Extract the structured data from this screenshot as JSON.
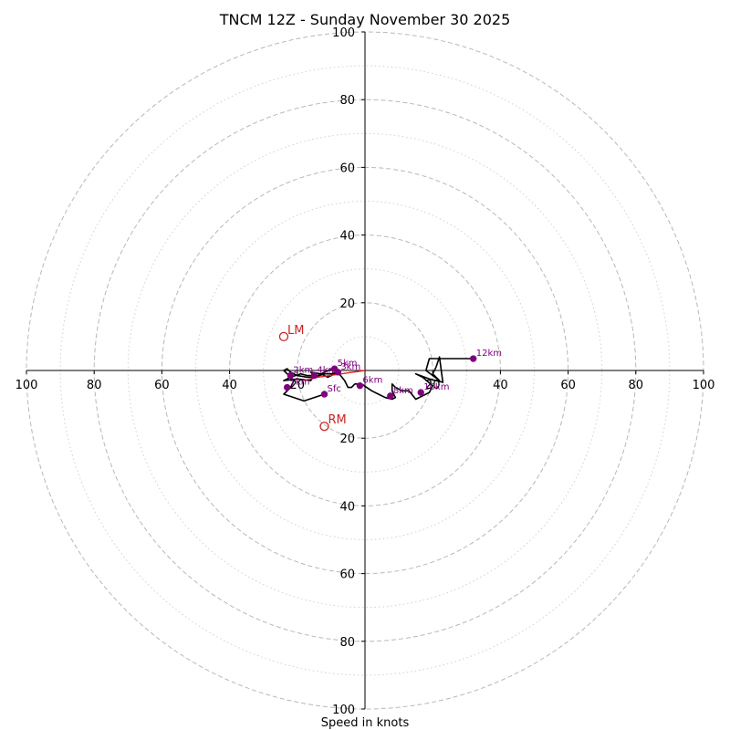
{
  "chart_data": {
    "type": "hodograph",
    "title": "TNCM 12Z - Sunday November 30 2025",
    "xlabel": "Speed in knots",
    "rmax": 100,
    "major_rings": [
      20,
      40,
      60,
      80,
      100
    ],
    "minor_rings": [
      10,
      30,
      50,
      70,
      90
    ],
    "tick_values": [
      20,
      40,
      60,
      80,
      100
    ],
    "x_tick_labels": [
      "100",
      "80",
      "60",
      "40",
      "20",
      "20",
      "40",
      "60",
      "80",
      "100"
    ],
    "x_tick_values": [
      -100,
      -80,
      -60,
      -40,
      -20,
      20,
      40,
      60,
      80,
      100
    ],
    "y_tick_labels": [
      "100",
      "80",
      "60",
      "40",
      "20",
      "20",
      "40",
      "60",
      "80",
      "100"
    ],
    "y_tick_values": [
      100,
      80,
      60,
      40,
      20,
      -20,
      -40,
      -60,
      -80,
      -100
    ],
    "trace_color": "#000000",
    "marker_color": "#800080",
    "storm_color": "#cc2222",
    "trace_uv": [
      [
        -12,
        -7
      ],
      [
        -18,
        -9
      ],
      [
        -24,
        -7
      ],
      [
        -22,
        -5
      ],
      [
        -21,
        -3
      ],
      [
        -22,
        -2
      ],
      [
        -24,
        -3
      ],
      [
        -20,
        -2.5
      ],
      [
        -16,
        -3
      ],
      [
        -15,
        -1.5
      ],
      [
        -16,
        -0.5
      ],
      [
        -13,
        -1
      ],
      [
        -11,
        -2
      ],
      [
        -8,
        -0.5
      ],
      [
        -9,
        0.5
      ],
      [
        -11,
        0
      ],
      [
        -12,
        -0.5
      ],
      [
        -14,
        -1.5
      ],
      [
        -17,
        -1.5
      ],
      [
        -19,
        -1
      ],
      [
        -22,
        -2
      ],
      [
        -23,
        -1
      ],
      [
        -24,
        0
      ],
      [
        -23,
        0.5
      ],
      [
        -22,
        -0.5
      ],
      [
        -20,
        -1.5
      ],
      [
        -17,
        -2
      ],
      [
        -15,
        -2
      ],
      [
        -12,
        -1
      ],
      [
        -10,
        -1
      ],
      [
        -8,
        -0.5
      ],
      [
        -6,
        -3
      ],
      [
        -5,
        -5
      ],
      [
        -4,
        -5
      ],
      [
        -3,
        -4
      ],
      [
        -1,
        -4
      ],
      [
        2,
        -6
      ],
      [
        4,
        -7
      ],
      [
        6,
        -8
      ],
      [
        8,
        -8.5
      ],
      [
        9,
        -8
      ],
      [
        8,
        -6
      ],
      [
        8,
        -4
      ],
      [
        9,
        -5
      ],
      [
        11,
        -6
      ],
      [
        13,
        -6
      ],
      [
        15,
        -8.5
      ],
      [
        17,
        -7.5
      ],
      [
        19,
        -6.5
      ],
      [
        20,
        -4.5
      ],
      [
        17,
        -2
      ],
      [
        15,
        -1
      ],
      [
        19,
        -2.5
      ],
      [
        23,
        -3.5
      ],
      [
        22,
        4
      ],
      [
        21,
        1
      ],
      [
        20,
        -1
      ],
      [
        22,
        -3
      ],
      [
        18,
        0
      ],
      [
        19,
        3.5
      ],
      [
        32,
        3.5
      ]
    ],
    "height_labels": [
      {
        "label": "Sfc",
        "u": -12,
        "v": -7
      },
      {
        "label": "1km",
        "u": -23,
        "v": -5
      },
      {
        "label": "2km",
        "u": -22,
        "v": -1.5
      },
      {
        "label": "3km",
        "u": -8,
        "v": -0.5
      },
      {
        "label": "4km",
        "u": -15,
        "v": -1.5
      },
      {
        "label": "5km",
        "u": -9,
        "v": 0.5
      },
      {
        "label": "6km",
        "u": -1.5,
        "v": -4.5
      },
      {
        "label": "8km",
        "u": 7.5,
        "v": -7.5
      },
      {
        "label": "10km",
        "u": 16.5,
        "v": -6.5
      },
      {
        "label": "12km",
        "u": 32,
        "v": 3.5
      }
    ],
    "mean_wind_line": [
      [
        0,
        0
      ],
      [
        -14,
        -2
      ],
      [
        -18,
        -3
      ]
    ],
    "storm_motions": [
      {
        "label": "LM",
        "u": -24,
        "v": 10
      },
      {
        "label": "RM",
        "u": -12,
        "v": -16.5
      }
    ]
  }
}
